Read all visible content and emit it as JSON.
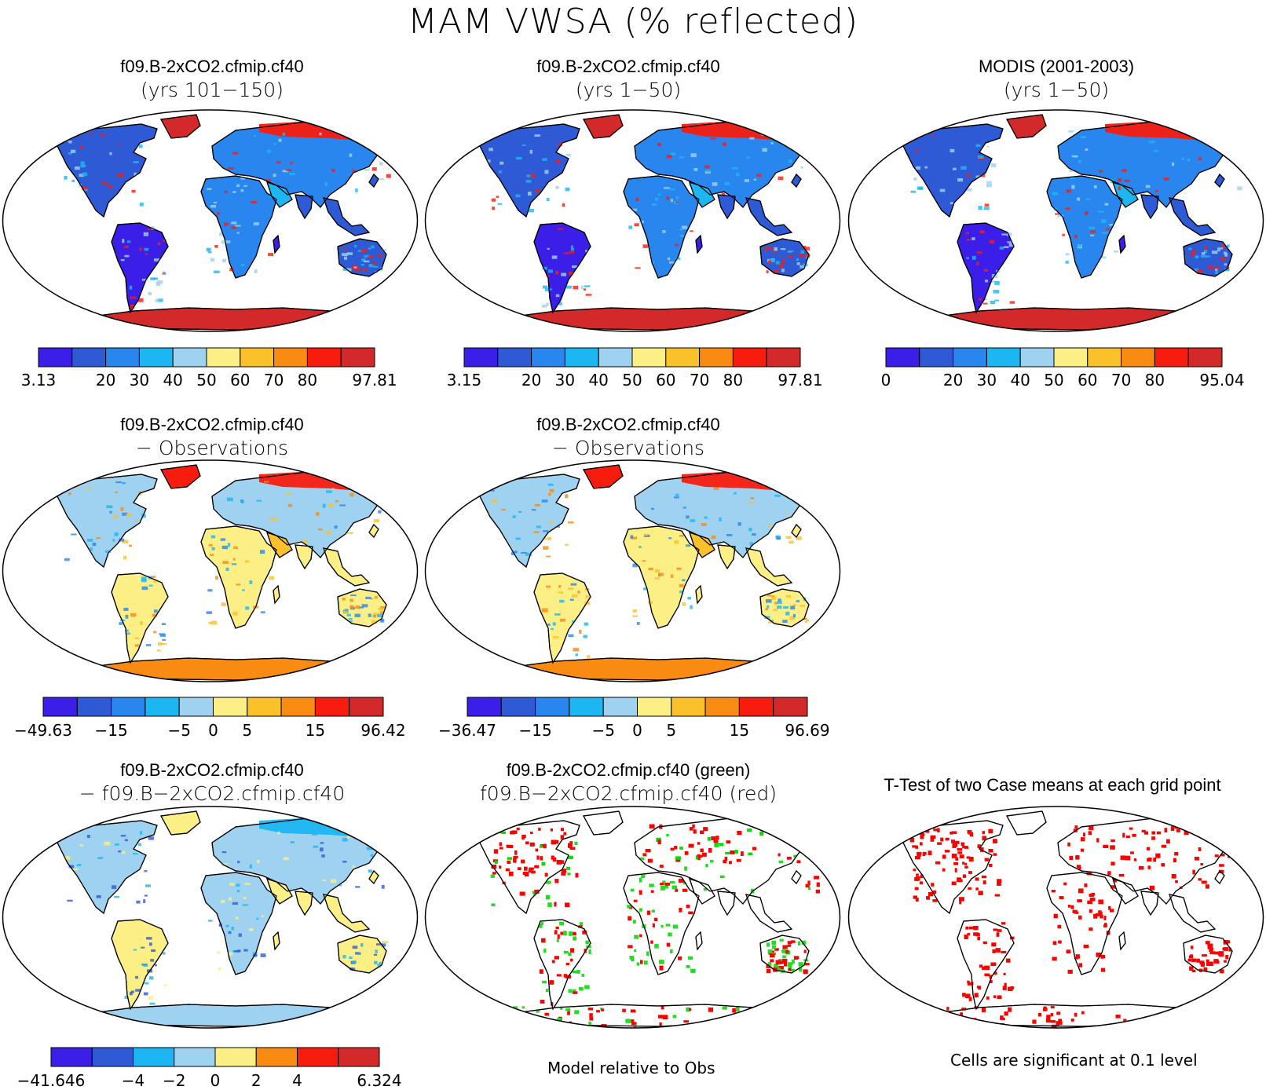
{
  "title": "MAM VWSA (% reflected)",
  "palettes": {
    "rainbow10": [
      "#3b1fe8",
      "#2f5ad6",
      "#2a86ef",
      "#1cb6f2",
      "#9fd2f0",
      "#fbef85",
      "#fbc12a",
      "#f98a12",
      "#f71c0e",
      "#d3292a"
    ],
    "diff10": [
      "#3b1fe8",
      "#2f5ad6",
      "#2a86ef",
      "#1cb6f2",
      "#9fd2f0",
      "#fbef85",
      "#fbc12a",
      "#f98a12",
      "#f71c0e",
      "#d3292a"
    ],
    "diff8": [
      "#3b1fe8",
      "#2f5ad6",
      "#1cb6f2",
      "#9fd2f0",
      "#fbef85",
      "#f98a12",
      "#f71c0e",
      "#d3292a"
    ]
  },
  "panels": [
    {
      "title": "f09.B-2xCO2.cfmip.cf40",
      "subtitle": "(yrs 101−150)",
      "colorbar_labels": [
        "3.13",
        "20",
        "30",
        "40",
        "50",
        "60",
        "70",
        "80",
        "97.81"
      ]
    },
    {
      "title": "f09.B-2xCO2.cfmip.cf40",
      "subtitle": "(yrs 1−50)",
      "colorbar_labels": [
        "3.15",
        "20",
        "30",
        "40",
        "50",
        "60",
        "70",
        "80",
        "97.81"
      ]
    },
    {
      "title": "MODIS (2001-2003)",
      "subtitle": "(yrs 1−50)",
      "colorbar_labels": [
        "0",
        "20",
        "30",
        "40",
        "50",
        "60",
        "70",
        "80",
        "95.04"
      ]
    },
    {
      "title": "f09.B-2xCO2.cfmip.cf40",
      "subtitle": "− Observations",
      "colorbar_labels": [
        "−49.63",
        "−15",
        "−5",
        "0",
        "5",
        "15",
        "96.42"
      ]
    },
    {
      "title": "f09.B-2xCO2.cfmip.cf40",
      "subtitle": "− Observations",
      "colorbar_labels": [
        "−36.47",
        "−15",
        "−5",
        "0",
        "5",
        "15",
        "96.69"
      ]
    },
    {
      "title": "f09.B-2xCO2.cfmip.cf40",
      "subtitle": "− f09.B−2xCO2.cfmip.cf40",
      "colorbar_labels": [
        "−41.646",
        "−4",
        "−2",
        "0",
        "2",
        "4",
        "6.324"
      ]
    },
    {
      "title": "f09.B-2xCO2.cfmip.cf40 (green)",
      "subtitle": "f09.B−2xCO2.cfmip.cf40 (red)",
      "note": "Model relative to Obs"
    },
    {
      "title": "T-Test of two Case means at each grid point",
      "note": "Cells are significant at 0.1 level"
    }
  ]
}
